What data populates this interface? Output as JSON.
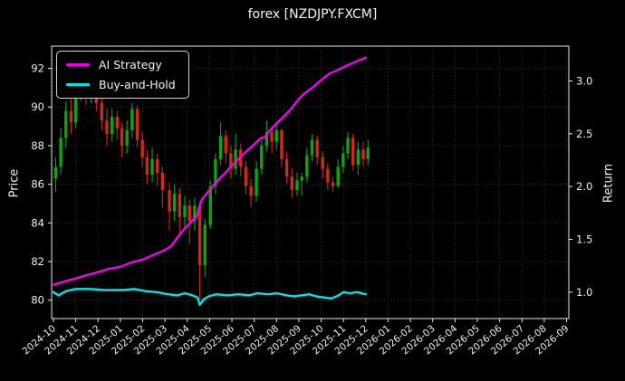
{
  "window_title": "forex [NZDJPY.FXCM]",
  "chart_data": {
    "type": "candlestick+line",
    "title": "forex [NZDJPY.FXCM]",
    "grid": "dotted, on price and month ticks",
    "background_color": "#000000",
    "text_color": "#f0f0f0",
    "left_axis": {
      "label": "Price",
      "ticks": [
        80,
        82,
        84,
        86,
        88,
        90,
        92
      ],
      "range": [
        79.05,
        93.15
      ]
    },
    "right_axis": {
      "label": "Return",
      "ticks": [
        1.0,
        1.5,
        2.0,
        2.5,
        3.0
      ],
      "range": [
        0.75,
        3.33
      ]
    },
    "x_axis": {
      "tick_labels": [
        "2024-10",
        "2024-11",
        "2024-12",
        "2025-01",
        "2025-02",
        "2025-03",
        "2025-04",
        "2025-05",
        "2025-06",
        "2025-07",
        "2025-08",
        "2025-09",
        "2025-10",
        "2025-11",
        "2025-12",
        "2026-01",
        "2026-02",
        "2026-03",
        "2026-04",
        "2026-05",
        "2026-06",
        "2026-07",
        "2026-08",
        "2026-09"
      ],
      "label_rotation_deg": -40
    },
    "legend": [
      {
        "label": "AI Strategy",
        "color": "#f000f0"
      },
      {
        "label": "Buy-and-Hold",
        "color": "#00e5e5"
      }
    ],
    "colors": {
      "up_candle": "#0fa312",
      "down_candle": "#cd2a1a",
      "strategy_line": "#f000f0",
      "buyhold_line": "#00e5e5"
    },
    "candles_note": "weekly OHLC estimated from dense daily candles, axis = Price",
    "candles": [
      [
        "2024-10-04",
        86.3,
        87.4,
        85.6,
        86.9
      ],
      [
        "2024-10-11",
        86.9,
        88.9,
        86.5,
        88.4
      ],
      [
        "2024-10-18",
        88.4,
        90.3,
        87.9,
        89.8
      ],
      [
        "2024-10-25",
        89.8,
        90.4,
        88.6,
        89.2
      ],
      [
        "2024-11-01",
        89.2,
        91.4,
        88.9,
        90.8
      ],
      [
        "2024-11-08",
        90.8,
        92.7,
        90.3,
        91.9
      ],
      [
        "2024-11-15",
        91.9,
        92.3,
        90.1,
        90.7
      ],
      [
        "2024-11-22",
        90.7,
        92.2,
        90.2,
        91.5
      ],
      [
        "2024-11-29",
        91.5,
        91.8,
        89.8,
        90.2
      ],
      [
        "2024-12-06",
        90.2,
        90.6,
        88.8,
        89.3
      ],
      [
        "2024-12-13",
        89.3,
        89.9,
        88.0,
        88.6
      ],
      [
        "2024-12-20",
        88.6,
        89.9,
        88.2,
        89.5
      ],
      [
        "2024-12-27",
        89.5,
        89.8,
        88.3,
        88.9
      ],
      [
        "2025-01-03",
        88.9,
        89.2,
        87.4,
        88.0
      ],
      [
        "2025-01-10",
        88.0,
        89.3,
        87.6,
        88.8
      ],
      [
        "2025-01-17",
        88.8,
        90.2,
        88.4,
        89.9
      ],
      [
        "2025-01-24",
        89.9,
        90.1,
        87.9,
        88.3
      ],
      [
        "2025-01-31",
        88.3,
        88.7,
        86.9,
        87.4
      ],
      [
        "2025-02-07",
        87.4,
        87.8,
        86.0,
        86.5
      ],
      [
        "2025-02-14",
        86.5,
        87.9,
        86.1,
        87.3
      ],
      [
        "2025-02-21",
        87.3,
        87.6,
        85.9,
        86.6
      ],
      [
        "2025-02-28",
        86.6,
        86.9,
        84.8,
        85.7
      ],
      [
        "2025-03-07",
        85.7,
        86.1,
        83.6,
        84.6
      ],
      [
        "2025-03-14",
        84.6,
        86.0,
        84.1,
        85.5
      ],
      [
        "2025-03-21",
        85.5,
        85.8,
        83.4,
        84.3
      ],
      [
        "2025-03-28",
        84.3,
        85.4,
        83.8,
        84.9
      ],
      [
        "2025-04-04",
        84.9,
        85.2,
        82.9,
        84.1
      ],
      [
        "2025-04-11",
        84.1,
        85.3,
        83.6,
        84.9
      ],
      [
        "2025-04-18",
        84.9,
        85.1,
        80.0,
        81.8
      ],
      [
        "2025-04-25",
        81.8,
        84.2,
        81.2,
        83.9
      ],
      [
        "2025-05-02",
        83.9,
        86.2,
        83.7,
        85.9
      ],
      [
        "2025-05-09",
        85.9,
        87.6,
        85.5,
        87.3
      ],
      [
        "2025-05-16",
        87.3,
        89.2,
        87.0,
        88.5
      ],
      [
        "2025-05-23",
        88.5,
        88.8,
        87.1,
        87.6
      ],
      [
        "2025-05-30",
        87.6,
        88.0,
        86.3,
        86.8
      ],
      [
        "2025-06-06",
        86.8,
        88.6,
        86.5,
        87.8
      ],
      [
        "2025-06-13",
        87.8,
        88.1,
        86.4,
        86.9
      ],
      [
        "2025-06-20",
        86.9,
        87.2,
        85.5,
        85.9
      ],
      [
        "2025-06-27",
        85.9,
        86.3,
        84.8,
        85.4
      ],
      [
        "2025-07-04",
        85.4,
        87.2,
        85.1,
        86.8
      ],
      [
        "2025-07-11",
        86.8,
        88.4,
        86.5,
        88.0
      ],
      [
        "2025-07-18",
        88.0,
        89.3,
        87.7,
        88.7
      ],
      [
        "2025-07-25",
        88.7,
        89.0,
        87.6,
        88.2
      ],
      [
        "2025-08-01",
        88.2,
        89.2,
        87.8,
        88.8
      ],
      [
        "2025-08-08",
        88.8,
        88.9,
        86.9,
        87.3
      ],
      [
        "2025-08-15",
        87.3,
        87.7,
        86.0,
        86.4
      ],
      [
        "2025-08-22",
        86.4,
        86.8,
        85.3,
        85.7
      ],
      [
        "2025-08-29",
        85.7,
        86.6,
        85.4,
        86.2
      ],
      [
        "2025-09-05",
        86.2,
        86.6,
        85.4,
        86.4
      ],
      [
        "2025-09-12",
        86.4,
        87.9,
        86.1,
        87.5
      ],
      [
        "2025-09-19",
        87.5,
        88.6,
        87.2,
        88.3
      ],
      [
        "2025-09-26",
        88.3,
        88.5,
        87.0,
        87.4
      ],
      [
        "2025-10-03",
        87.4,
        87.7,
        86.3,
        86.8
      ],
      [
        "2025-10-10",
        86.8,
        87.1,
        85.7,
        86.1
      ],
      [
        "2025-10-17",
        86.1,
        86.4,
        85.6,
        85.9
      ],
      [
        "2025-10-24",
        85.9,
        87.3,
        85.8,
        86.9
      ],
      [
        "2025-10-31",
        86.9,
        88.0,
        86.6,
        87.6
      ],
      [
        "2025-11-07",
        87.6,
        88.7,
        87.3,
        88.4
      ],
      [
        "2025-11-14",
        88.4,
        88.6,
        86.7,
        87.0
      ],
      [
        "2025-11-21",
        87.0,
        88.2,
        86.5,
        87.8
      ],
      [
        "2025-11-28",
        87.8,
        88.2,
        86.9,
        87.3
      ],
      [
        "2025-12-04",
        87.3,
        88.3,
        87.0,
        87.9
      ]
    ],
    "series": [
      {
        "name": "AI Strategy",
        "axis": "return",
        "color": "#f000f0",
        "points": [
          [
            "2024-10-01",
            1.07
          ],
          [
            "2024-10-15",
            1.1
          ],
          [
            "2024-11-01",
            1.13
          ],
          [
            "2024-11-15",
            1.16
          ],
          [
            "2024-12-01",
            1.19
          ],
          [
            "2024-12-15",
            1.22
          ],
          [
            "2025-01-01",
            1.24
          ],
          [
            "2025-01-15",
            1.28
          ],
          [
            "2025-02-01",
            1.31
          ],
          [
            "2025-02-15",
            1.35
          ],
          [
            "2025-03-01",
            1.4
          ],
          [
            "2025-03-10",
            1.44
          ],
          [
            "2025-03-18",
            1.52
          ],
          [
            "2025-03-25",
            1.58
          ],
          [
            "2025-04-01",
            1.63
          ],
          [
            "2025-04-08",
            1.68
          ],
          [
            "2025-04-14",
            1.72
          ],
          [
            "2025-04-17",
            1.8
          ],
          [
            "2025-04-21",
            1.88
          ],
          [
            "2025-04-28",
            1.94
          ],
          [
            "2025-05-05",
            2.0
          ],
          [
            "2025-05-15",
            2.08
          ],
          [
            "2025-05-25",
            2.15
          ],
          [
            "2025-06-01",
            2.2
          ],
          [
            "2025-06-10",
            2.26
          ],
          [
            "2025-06-20",
            2.33
          ],
          [
            "2025-07-01",
            2.4
          ],
          [
            "2025-07-10",
            2.46
          ],
          [
            "2025-07-16",
            2.47
          ],
          [
            "2025-07-22",
            2.53
          ],
          [
            "2025-08-01",
            2.6
          ],
          [
            "2025-08-10",
            2.66
          ],
          [
            "2025-08-20",
            2.73
          ],
          [
            "2025-09-01",
            2.83
          ],
          [
            "2025-09-10",
            2.89
          ],
          [
            "2025-09-20",
            2.94
          ],
          [
            "2025-10-01",
            3.01
          ],
          [
            "2025-10-12",
            3.07
          ],
          [
            "2025-10-22",
            3.1
          ],
          [
            "2025-11-01",
            3.13
          ],
          [
            "2025-11-10",
            3.16
          ],
          [
            "2025-11-20",
            3.19
          ],
          [
            "2025-12-01",
            3.22
          ]
        ]
      },
      {
        "name": "Buy-and-Hold",
        "axis": "return",
        "color": "#00e5e5",
        "points": [
          [
            "2024-10-01",
            1.0
          ],
          [
            "2024-10-08",
            0.97
          ],
          [
            "2024-10-18",
            1.01
          ],
          [
            "2024-11-01",
            1.03
          ],
          [
            "2024-11-20",
            1.03
          ],
          [
            "2024-12-10",
            1.02
          ],
          [
            "2025-01-05",
            1.02
          ],
          [
            "2025-01-20",
            1.03
          ],
          [
            "2025-02-05",
            1.01
          ],
          [
            "2025-02-20",
            1.0
          ],
          [
            "2025-03-05",
            0.98
          ],
          [
            "2025-03-18",
            0.97
          ],
          [
            "2025-03-28",
            0.99
          ],
          [
            "2025-04-08",
            0.97
          ],
          [
            "2025-04-15",
            0.95
          ],
          [
            "2025-04-18",
            0.88
          ],
          [
            "2025-04-23",
            0.93
          ],
          [
            "2025-04-30",
            0.96
          ],
          [
            "2025-05-10",
            0.98
          ],
          [
            "2025-05-25",
            0.97
          ],
          [
            "2025-06-10",
            0.98
          ],
          [
            "2025-06-25",
            0.97
          ],
          [
            "2025-07-05",
            0.99
          ],
          [
            "2025-07-20",
            0.98
          ],
          [
            "2025-08-01",
            0.99
          ],
          [
            "2025-08-15",
            0.97
          ],
          [
            "2025-08-25",
            0.96
          ],
          [
            "2025-09-05",
            0.97
          ],
          [
            "2025-09-15",
            0.98
          ],
          [
            "2025-09-25",
            0.96
          ],
          [
            "2025-10-05",
            0.95
          ],
          [
            "2025-10-15",
            0.94
          ],
          [
            "2025-10-25",
            0.97
          ],
          [
            "2025-11-01",
            1.0
          ],
          [
            "2025-11-10",
            0.99
          ],
          [
            "2025-11-20",
            1.0
          ],
          [
            "2025-12-01",
            0.98
          ]
        ]
      }
    ]
  }
}
